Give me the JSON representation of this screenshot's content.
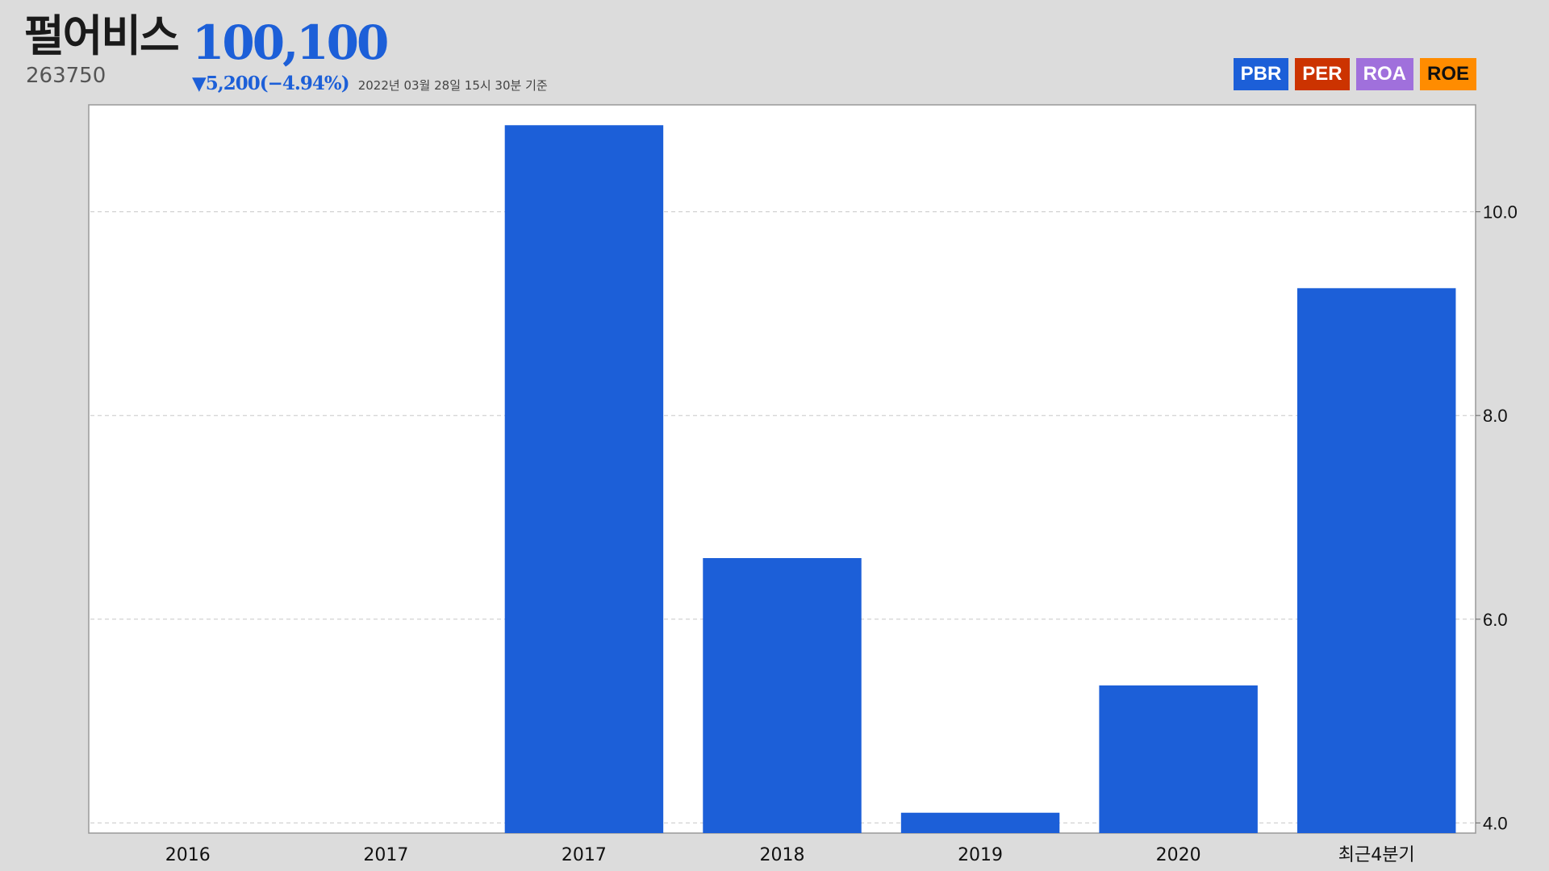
{
  "header": {
    "company_name": "펄어비스",
    "stock_code": "263750",
    "price": "100,100",
    "change": "▼5,200(−4.94%)",
    "timestamp": "2022년 03월 28일 15시 30분 기준"
  },
  "legend": {
    "items": [
      {
        "label": "PBR",
        "color": "#1c5fd8",
        "text_color": "#ffffff"
      },
      {
        "label": "PER",
        "color": "#cc3300",
        "text_color": "#ffffff"
      },
      {
        "label": "ROA",
        "color": "#a070dc",
        "text_color": "#ffffff"
      },
      {
        "label": "ROE",
        "color": "#ff8c00",
        "text_color": "#111111"
      }
    ]
  },
  "chart_data": {
    "type": "bar",
    "categories": [
      "2016",
      "2017",
      "2017",
      "2018",
      "2019",
      "2020",
      "최근4분기"
    ],
    "values": [
      null,
      null,
      10.85,
      6.6,
      4.1,
      5.35,
      9.25
    ],
    "y_ticks": [
      "4.0",
      "6.0",
      "8.0",
      "10.0"
    ],
    "ylim": [
      3.9,
      11.05
    ],
    "y_axis_side": "right",
    "grid": true,
    "bar_color": "#1c5fd8",
    "title": "",
    "xlabel": "",
    "ylabel": ""
  }
}
